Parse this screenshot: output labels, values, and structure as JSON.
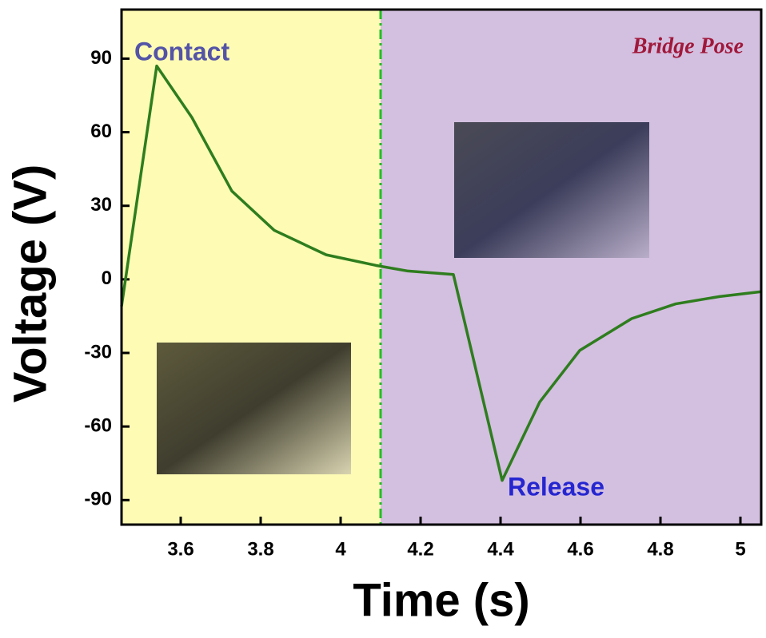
{
  "chart_data": {
    "type": "line",
    "x_label": "Time (s)",
    "y_label": "Voltage (V)",
    "annotations": [
      "Contact",
      "Bridge Pose",
      "Release"
    ],
    "x": [
      3.452,
      3.54,
      3.628,
      3.728,
      3.834,
      3.964,
      4.088,
      4.168,
      4.282,
      4.404,
      4.498,
      4.598,
      4.728,
      4.838,
      4.948,
      5.052
    ],
    "series": [
      {
        "color": "#2e7d1e",
        "values": [
          -11,
          87,
          66,
          36,
          20,
          10,
          5.7,
          3.4,
          2,
          -82,
          -50,
          -29,
          -16,
          -10,
          -7,
          -5
        ]
      }
    ],
    "divider_x": 4.1,
    "xlim": [
      3.452,
      5.052
    ],
    "xticks": [
      3.6,
      3.8,
      4.0,
      4.2,
      4.4,
      4.6,
      4.8,
      5.0
    ],
    "ylim": [
      -100,
      110
    ],
    "yticks": [
      90,
      60,
      30,
      0,
      -30,
      -60,
      -90
    ]
  }
}
